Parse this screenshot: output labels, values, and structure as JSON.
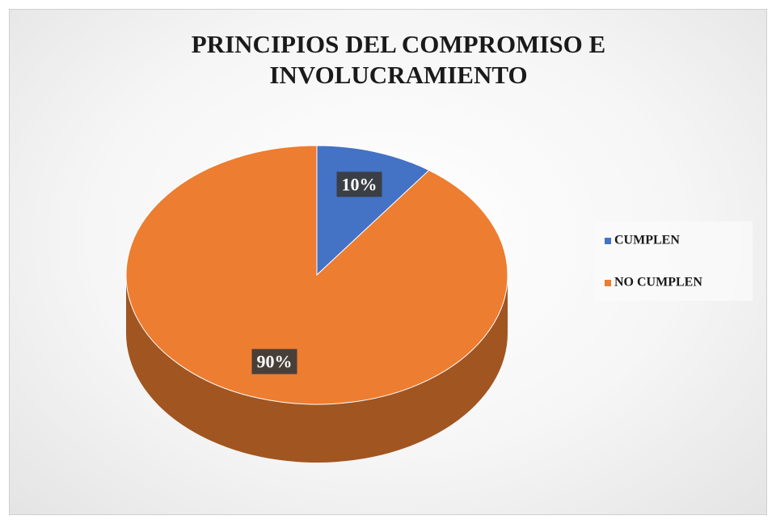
{
  "chart_data": {
    "type": "pie",
    "title": "PRINCIPIOS DEL COMPROMISO E INVOLUCRAMIENTO",
    "categories": [
      "CUMPLEN",
      "NO CUMPLEN"
    ],
    "values": [
      10,
      90
    ],
    "value_labels": [
      "10%",
      "90%"
    ],
    "colors": [
      "#4472c4",
      "#ed7d31"
    ],
    "legend": "right"
  }
}
